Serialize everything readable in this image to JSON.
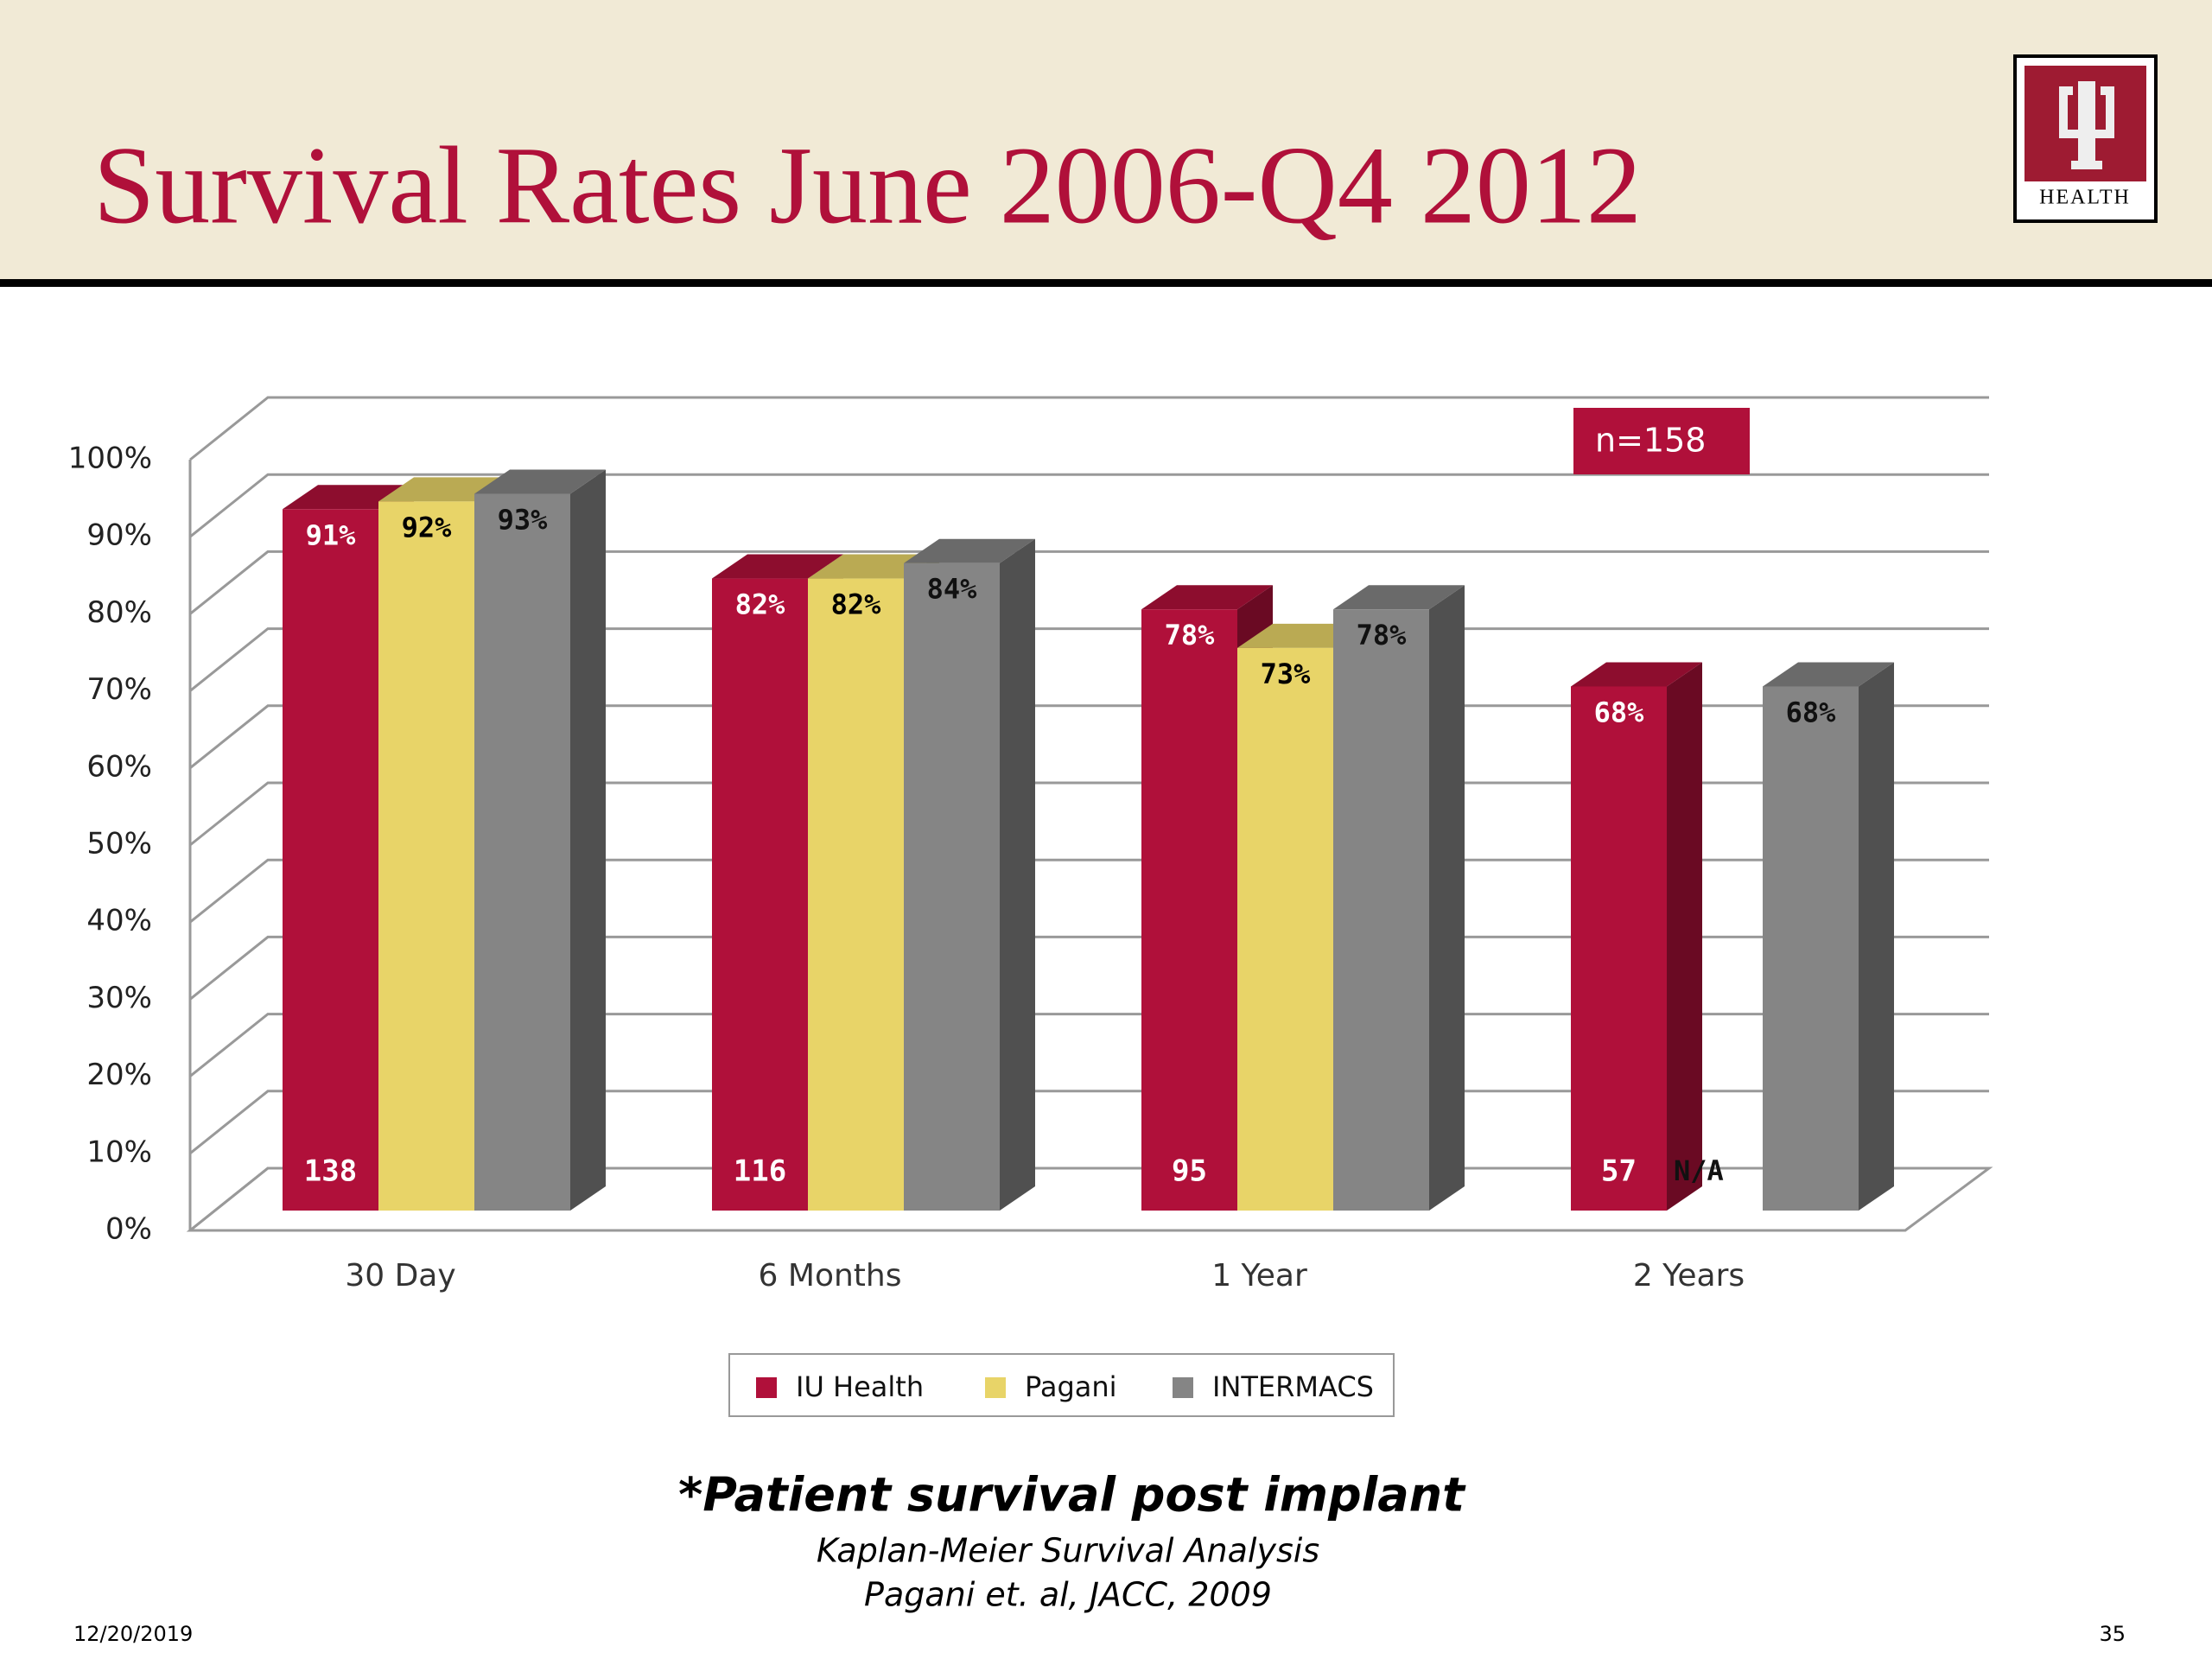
{
  "slide": {
    "title": "Survival Rates June 2006-Q4 2012",
    "logo_text": "HEALTH",
    "footnote": "*Patient survival post implant",
    "method": "Kaplan-Meier Survival Analysis",
    "reference": "Pagani et. al, JACC, 2009",
    "date": "12/20/2019",
    "page": "35"
  },
  "chart_data": {
    "type": "bar3d",
    "categories": [
      "30 Day",
      "6 Months",
      "1 Year",
      "2 Years"
    ],
    "series": [
      {
        "name": "IU Health",
        "color": "#b0103a",
        "values": [
          91,
          82,
          78,
          68
        ],
        "value_labels": [
          "91%",
          "82%",
          "78%",
          "68%"
        ],
        "counts": [
          138,
          116,
          95,
          57
        ]
      },
      {
        "name": "Pagani",
        "color": "#e8d468",
        "values": [
          92,
          82,
          73,
          null
        ],
        "value_labels": [
          "92%",
          "82%",
          "73%",
          "N/A"
        ]
      },
      {
        "name": "INTERMACS",
        "color": "#858585",
        "values": [
          93,
          84,
          78,
          68
        ],
        "value_labels": [
          "93%",
          "84%",
          "78%",
          "68%"
        ]
      }
    ],
    "ylim": [
      0,
      100
    ],
    "yticks": [
      {
        "value": 0,
        "label": "0%"
      },
      {
        "value": 10,
        "label": "10%"
      },
      {
        "value": 20,
        "label": "20%"
      },
      {
        "value": 30,
        "label": "30%"
      },
      {
        "value": 40,
        "label": "40%"
      },
      {
        "value": 50,
        "label": "50%"
      },
      {
        "value": 60,
        "label": "60%"
      },
      {
        "value": 70,
        "label": "70%"
      },
      {
        "value": 80,
        "label": "80%"
      },
      {
        "value": 90,
        "label": "90%"
      },
      {
        "value": 100,
        "label": "100%"
      }
    ],
    "grid": true,
    "annotation": "n=158"
  }
}
